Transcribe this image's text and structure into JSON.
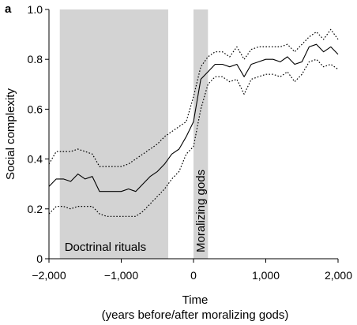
{
  "panel_letter": "a",
  "chart_data": {
    "type": "line",
    "title": "",
    "xlabel": "Time",
    "xlabel_sub": "(years before/after moralizing gods)",
    "ylabel": "Social complexity",
    "xlim": [
      -2000,
      2000
    ],
    "ylim": [
      0,
      1.0
    ],
    "x_ticks": [
      -2000,
      -1000,
      0,
      1000,
      2000
    ],
    "x_tick_labels": [
      "−2,000",
      "−1,000",
      "0",
      "1,000",
      "2,000"
    ],
    "y_ticks": [
      0,
      0.2,
      0.4,
      0.6,
      0.8,
      1.0
    ],
    "y_tick_labels": [
      "0",
      "0.2",
      "0.4",
      "0.6",
      "0.8",
      "1.0"
    ],
    "grid": false,
    "shaded_regions": [
      {
        "label": "Doctrinal rituals",
        "x_start": -1850,
        "x_end": -350,
        "color": "#d3d3d3",
        "label_orientation": "horizontal"
      },
      {
        "label": "Moralizing gods",
        "x_start": 0,
        "x_end": 200,
        "color": "#d3d3d3",
        "label_orientation": "vertical"
      }
    ],
    "x": [
      -2000,
      -1900,
      -1800,
      -1700,
      -1600,
      -1500,
      -1400,
      -1300,
      -1200,
      -1100,
      -1000,
      -900,
      -800,
      -700,
      -600,
      -500,
      -400,
      -300,
      -200,
      -100,
      0,
      100,
      200,
      300,
      400,
      500,
      600,
      700,
      800,
      900,
      1000,
      1100,
      1200,
      1300,
      1400,
      1500,
      1600,
      1700,
      1800,
      1900,
      2000
    ],
    "series": [
      {
        "role": "mean",
        "style": "solid",
        "color": "#000000",
        "values": [
          0.29,
          0.32,
          0.32,
          0.31,
          0.34,
          0.32,
          0.33,
          0.27,
          0.27,
          0.27,
          0.27,
          0.28,
          0.27,
          0.3,
          0.33,
          0.35,
          0.38,
          0.42,
          0.44,
          0.49,
          0.55,
          0.72,
          0.75,
          0.78,
          0.78,
          0.77,
          0.78,
          0.73,
          0.78,
          0.79,
          0.8,
          0.8,
          0.79,
          0.81,
          0.78,
          0.79,
          0.85,
          0.86,
          0.83,
          0.85,
          0.82
        ]
      },
      {
        "role": "upper bound",
        "style": "dotted",
        "color": "#000000",
        "values": [
          0.38,
          0.43,
          0.43,
          0.43,
          0.44,
          0.43,
          0.42,
          0.37,
          0.37,
          0.37,
          0.37,
          0.38,
          0.4,
          0.42,
          0.44,
          0.46,
          0.49,
          0.51,
          0.53,
          0.55,
          0.65,
          0.77,
          0.81,
          0.83,
          0.83,
          0.81,
          0.85,
          0.8,
          0.84,
          0.85,
          0.85,
          0.85,
          0.85,
          0.86,
          0.83,
          0.86,
          0.89,
          0.91,
          0.88,
          0.92,
          0.88
        ]
      },
      {
        "role": "lower bound",
        "style": "dotted",
        "color": "#000000",
        "values": [
          0.18,
          0.21,
          0.21,
          0.2,
          0.21,
          0.21,
          0.21,
          0.18,
          0.17,
          0.17,
          0.17,
          0.17,
          0.17,
          0.19,
          0.22,
          0.25,
          0.28,
          0.32,
          0.35,
          0.42,
          0.45,
          0.6,
          0.7,
          0.73,
          0.73,
          0.71,
          0.72,
          0.66,
          0.72,
          0.73,
          0.74,
          0.74,
          0.73,
          0.75,
          0.71,
          0.74,
          0.79,
          0.8,
          0.77,
          0.78,
          0.76
        ]
      }
    ]
  }
}
